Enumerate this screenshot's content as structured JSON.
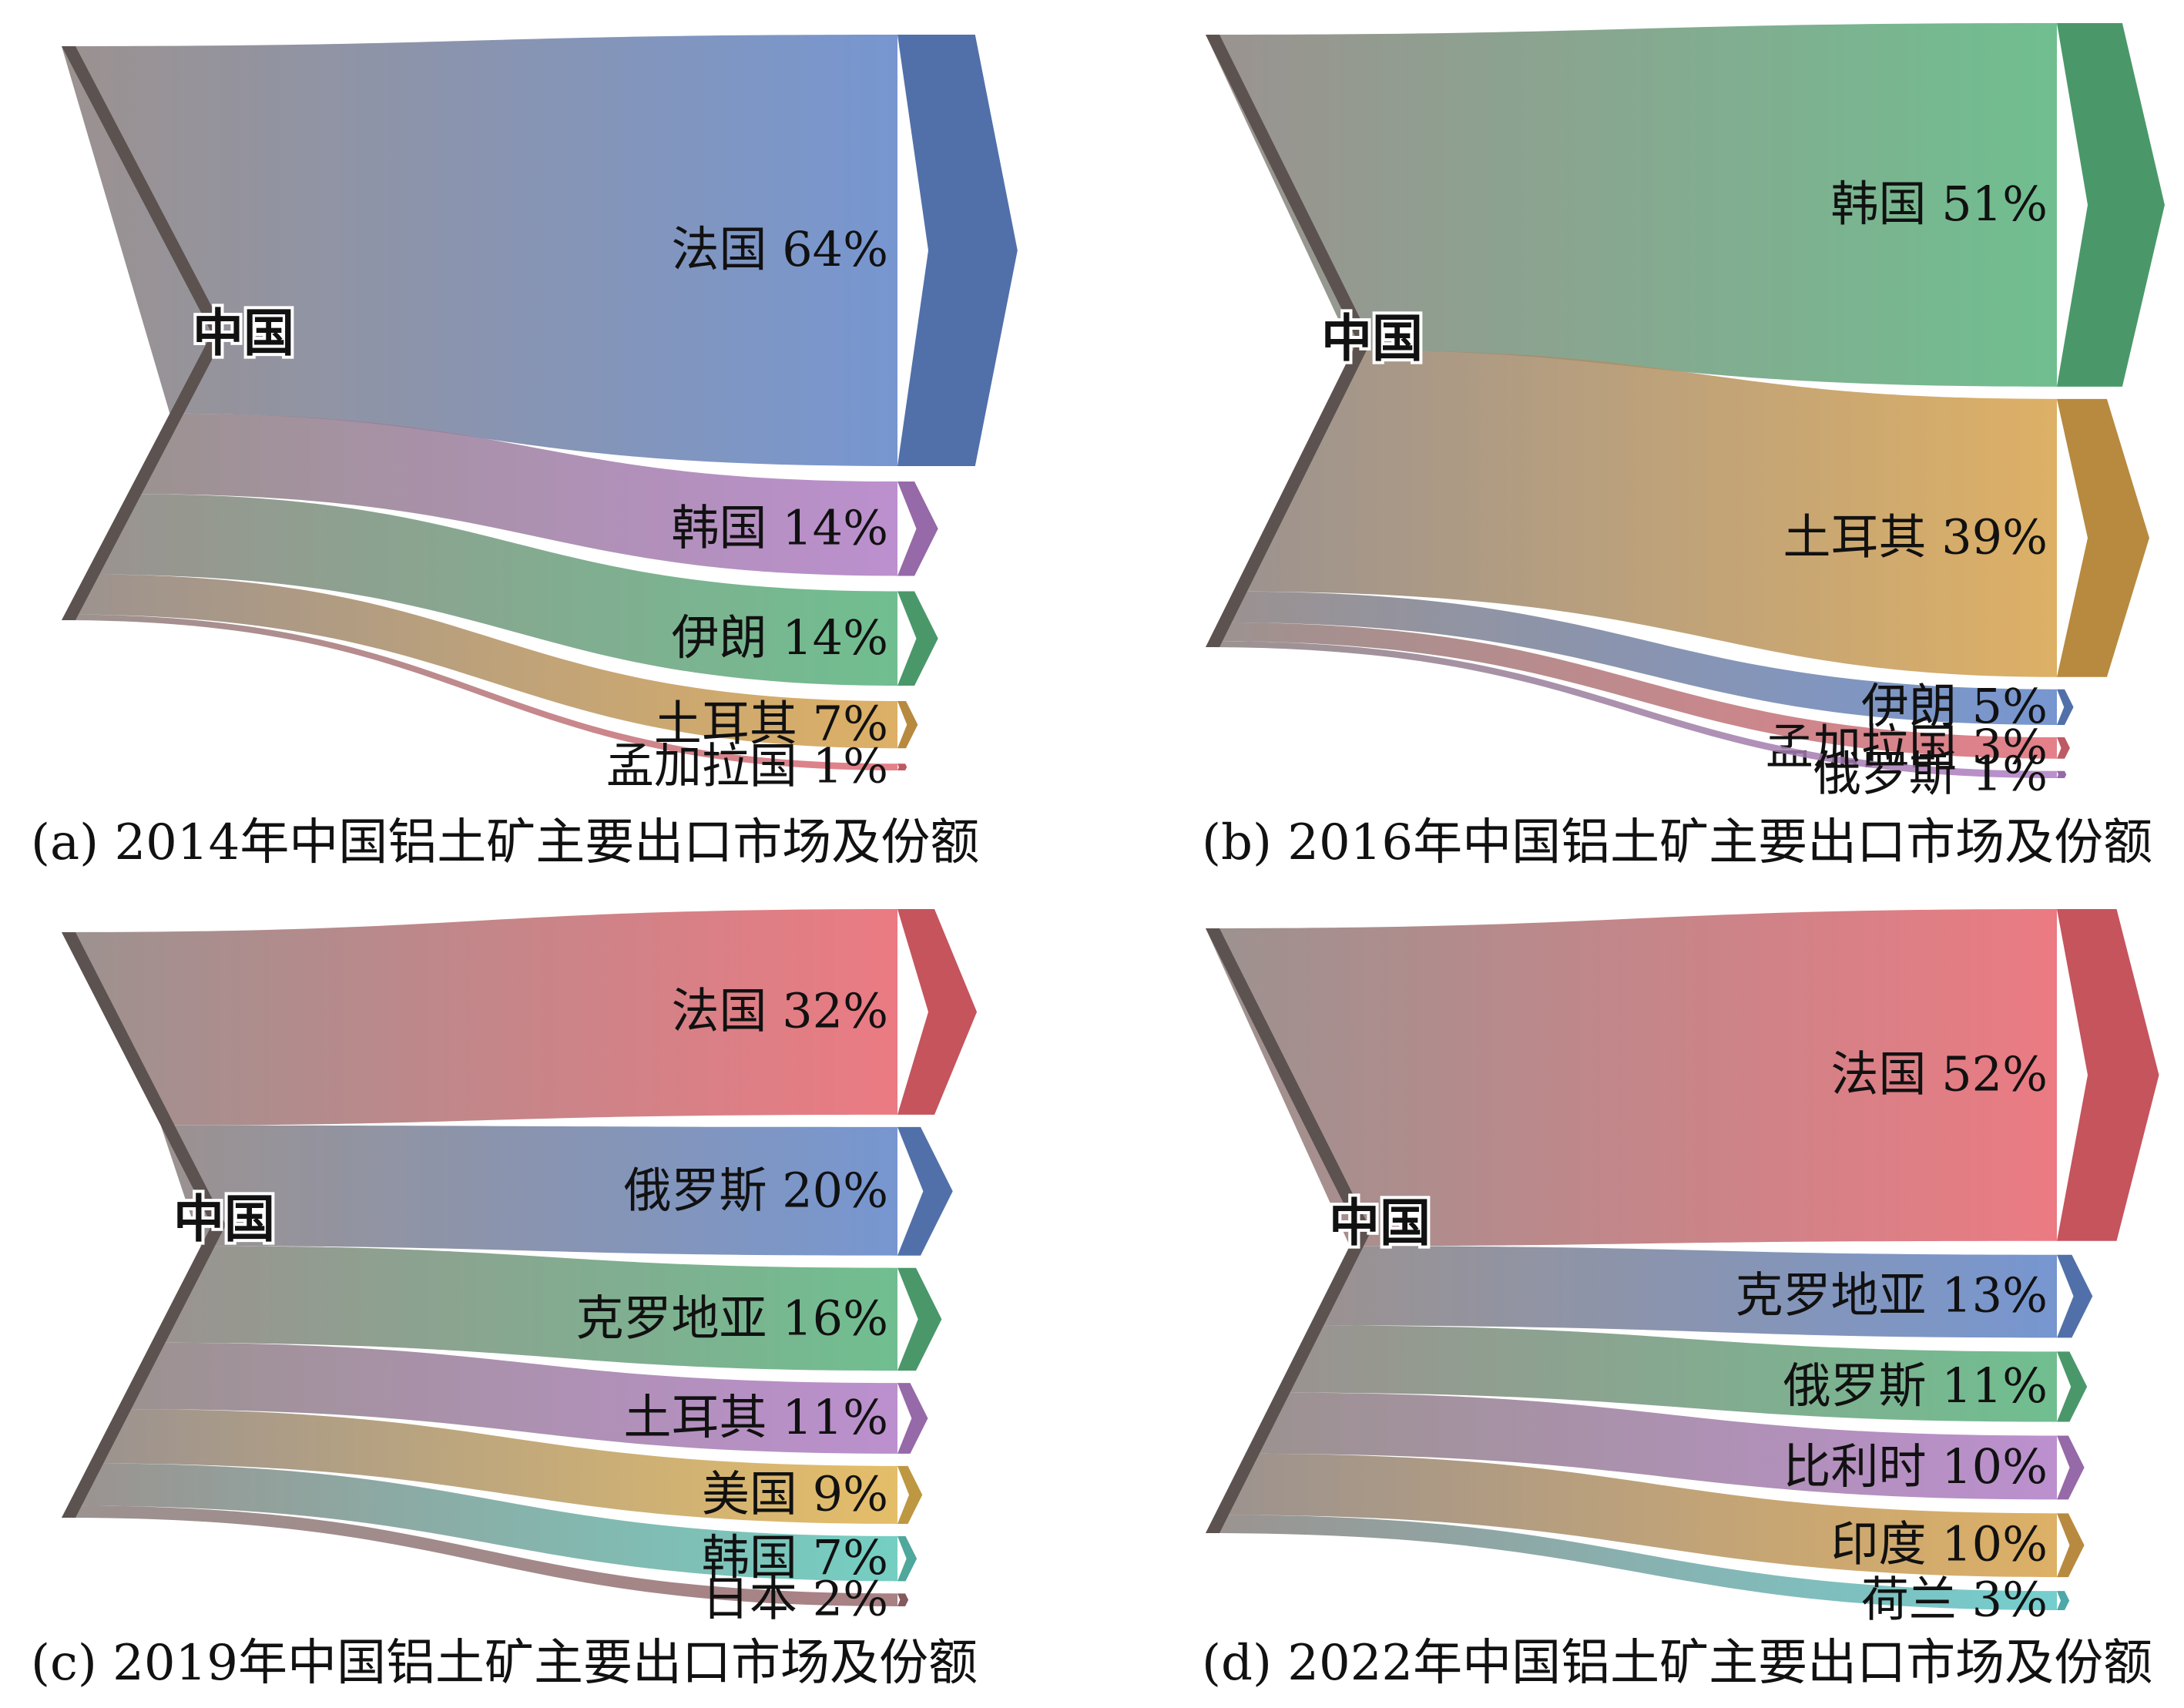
{
  "chart_data": [
    {
      "type": "sankey",
      "source": "中国",
      "caption": "(a) 2014年中国铝土矿主要出口市场及份额",
      "targets": [
        {
          "name": "法国",
          "label": "法国 64%",
          "value": 64,
          "color": "#5f84c8"
        },
        {
          "name": "韩国",
          "label": "韩国 14%",
          "value": 14,
          "color": "#b07cc6"
        },
        {
          "name": "伊朗",
          "label": "伊朗 14%",
          "value": 14,
          "color": "#57b37d"
        },
        {
          "name": "土耳其",
          "label": "土耳其 7%",
          "value": 7,
          "color": "#d7a24a"
        },
        {
          "name": "孟加拉国",
          "label": "孟加拉国 1%",
          "value": 1,
          "color": "#e06a75"
        }
      ]
    },
    {
      "type": "sankey",
      "source": "中国",
      "caption": "(b) 2016年中国铝土矿主要出口市场及份额",
      "targets": [
        {
          "name": "韩国",
          "label": "韩国 51%",
          "value": 51,
          "color": "#57b37d"
        },
        {
          "name": "土耳其",
          "label": "土耳其 39%",
          "value": 39,
          "color": "#d7a24a"
        },
        {
          "name": "伊朗",
          "label": "伊朗 5%",
          "value": 5,
          "color": "#5f84c8"
        },
        {
          "name": "孟加拉国",
          "label": "孟加拉国 3%",
          "value": 3,
          "color": "#e06a75"
        },
        {
          "name": "俄罗斯",
          "label": "俄罗斯 1%",
          "value": 1,
          "color": "#b07cc6"
        }
      ]
    },
    {
      "type": "sankey",
      "source": "中国",
      "caption": "(c) 2019年中国铝土矿主要出口市场及份额",
      "targets": [
        {
          "name": "法国",
          "label": "法国 32%",
          "value": 32,
          "color": "#e8636d"
        },
        {
          "name": "俄罗斯",
          "label": "俄罗斯 20%",
          "value": 20,
          "color": "#5f84c8"
        },
        {
          "name": "克罗地亚",
          "label": "克罗地亚 16%",
          "value": 16,
          "color": "#57b37d"
        },
        {
          "name": "土耳其",
          "label": "土耳其 11%",
          "value": 11,
          "color": "#b07cc6"
        },
        {
          "name": "美国",
          "label": "美国 9%",
          "value": 9,
          "color": "#e0b24e"
        },
        {
          "name": "韩国",
          "label": "韩国 7%",
          "value": 7,
          "color": "#5cc6b8"
        },
        {
          "name": "日本",
          "label": "日本 2%",
          "value": 2,
          "color": "#9a6a6e"
        }
      ]
    },
    {
      "type": "sankey",
      "source": "中国",
      "caption": "(d) 2022年中国铝土矿主要出口市场及份额",
      "targets": [
        {
          "name": "法国",
          "label": "法国 52%",
          "value": 52,
          "color": "#e8636d"
        },
        {
          "name": "克罗地亚",
          "label": "克罗地亚 13%",
          "value": 13,
          "color": "#5f84c8"
        },
        {
          "name": "俄罗斯",
          "label": "俄罗斯 11%",
          "value": 11,
          "color": "#57b37d"
        },
        {
          "name": "比利时",
          "label": "比利时 10%",
          "value": 10,
          "color": "#b07cc6"
        },
        {
          "name": "印度",
          "label": "印度 10%",
          "value": 10,
          "color": "#d7a24a"
        },
        {
          "name": "荷兰",
          "label": "荷兰 3%",
          "value": 3,
          "color": "#5cc6c6"
        }
      ]
    }
  ]
}
